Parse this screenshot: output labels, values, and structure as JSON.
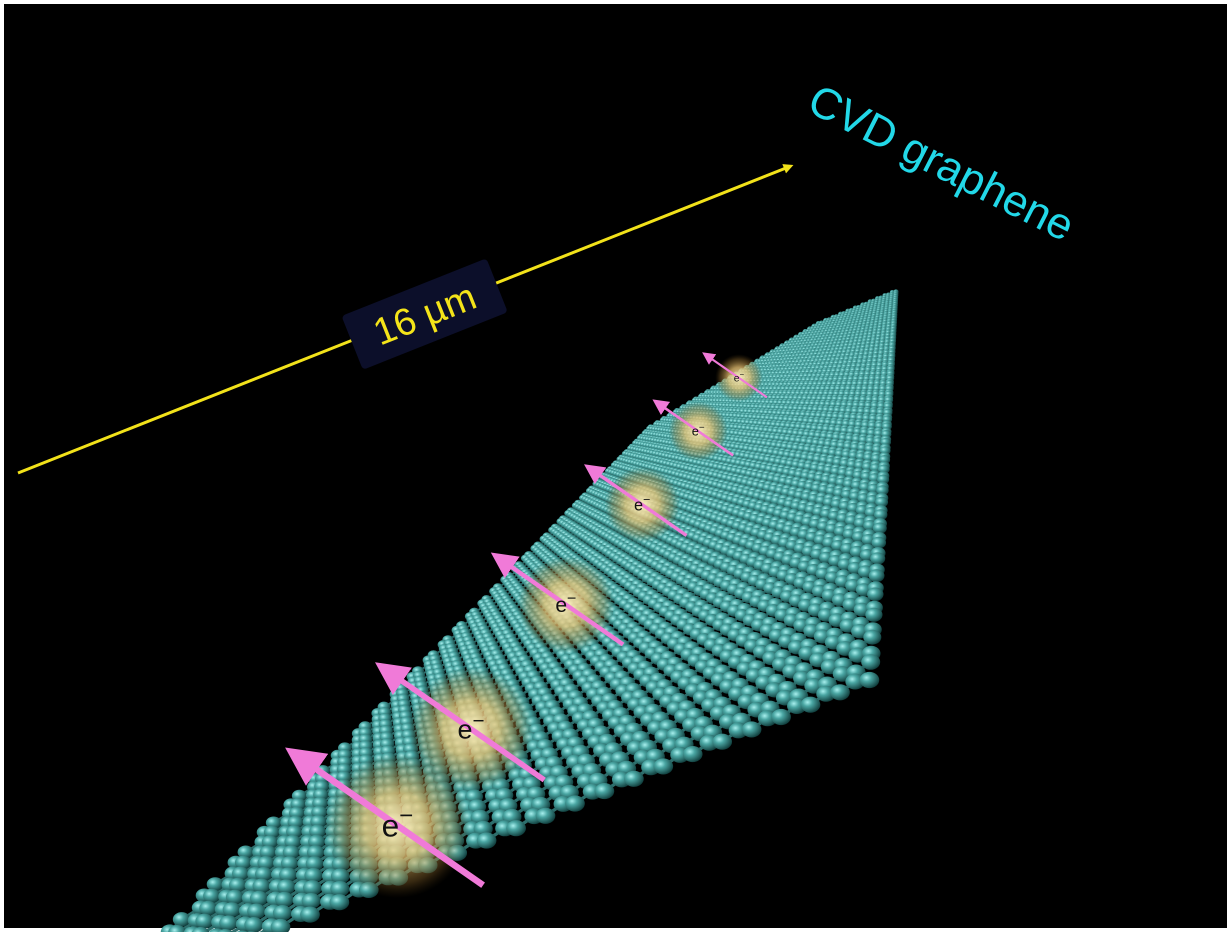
{
  "title": "CVD graphene",
  "length_label": "16 µm",
  "electron_label": "e",
  "electron_charge": "−",
  "electron_count": 6,
  "colors": {
    "background": "#000000",
    "lattice_atom": "#3a8f8c",
    "lattice_bond": "#2e6f6d",
    "title": "#22d8e8",
    "length_arrow": "#f2e21a",
    "spin_arrow": "#f07ad8",
    "electron_glow": "#f5d98a"
  },
  "icons": [
    "graphene-lattice",
    "electron-spin-arrow",
    "distance-arrow"
  ]
}
